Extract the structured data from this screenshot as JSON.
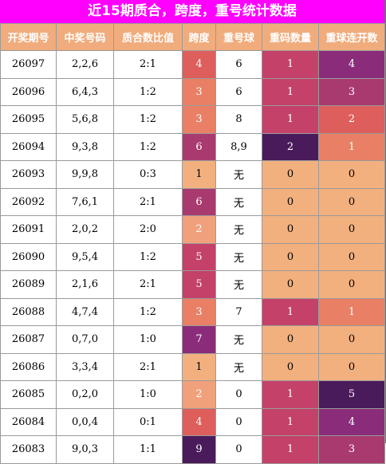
{
  "title": "近15期质合，跨度，重号统计数据",
  "columns": [
    "开奖期号",
    "中奖号码",
    "质合数比值",
    "跨度",
    "重号球",
    "重码数量",
    "重球连开数"
  ],
  "colors": {
    "header_bg": "#f0ac7c",
    "title_bg": "#ff00ff",
    "span_scale": {
      "1": "#f2b07f",
      "2": "#f0a07a",
      "3": "#e97f65",
      "4": "#dd5e5b",
      "5": "#c4416a",
      "6": "#a83a6f",
      "7": "#8a2c7a",
      "9": "#4a1b5a"
    },
    "count_scale": {
      "0": "#f2b07f",
      "1": "#c4416a",
      "2": "#4a1b5a"
    },
    "streak_scale": {
      "0": "#f2b07f",
      "1": "#e97f65",
      "2": "#dd5e5b",
      "3": "#a83a6f",
      "4": "#8a2c7a",
      "5": "#4a1b5a"
    }
  },
  "rows": [
    {
      "issue": "26097",
      "numbers": "2,2,6",
      "ratio": "2:1",
      "span": "4",
      "repeat": "6",
      "repeat_count": "1",
      "streak": "4"
    },
    {
      "issue": "26096",
      "numbers": "6,4,3",
      "ratio": "1:2",
      "span": "3",
      "repeat": "6",
      "repeat_count": "1",
      "streak": "3"
    },
    {
      "issue": "26095",
      "numbers": "5,6,8",
      "ratio": "1:2",
      "span": "3",
      "repeat": "8",
      "repeat_count": "1",
      "streak": "2"
    },
    {
      "issue": "26094",
      "numbers": "9,3,8",
      "ratio": "1:2",
      "span": "6",
      "repeat": "8,9",
      "repeat_count": "2",
      "streak": "1"
    },
    {
      "issue": "26093",
      "numbers": "9,9,8",
      "ratio": "0:3",
      "span": "1",
      "repeat": "无",
      "repeat_count": "0",
      "streak": "0"
    },
    {
      "issue": "26092",
      "numbers": "7,6,1",
      "ratio": "2:1",
      "span": "6",
      "repeat": "无",
      "repeat_count": "0",
      "streak": "0"
    },
    {
      "issue": "26091",
      "numbers": "2,0,2",
      "ratio": "2:0",
      "span": "2",
      "repeat": "无",
      "repeat_count": "0",
      "streak": "0"
    },
    {
      "issue": "26090",
      "numbers": "9,5,4",
      "ratio": "1:2",
      "span": "5",
      "repeat": "无",
      "repeat_count": "0",
      "streak": "0"
    },
    {
      "issue": "26089",
      "numbers": "2,1,6",
      "ratio": "2:1",
      "span": "5",
      "repeat": "无",
      "repeat_count": "0",
      "streak": "0"
    },
    {
      "issue": "26088",
      "numbers": "4,7,4",
      "ratio": "1:2",
      "span": "3",
      "repeat": "7",
      "repeat_count": "1",
      "streak": "1"
    },
    {
      "issue": "26087",
      "numbers": "0,7,0",
      "ratio": "1:0",
      "span": "7",
      "repeat": "无",
      "repeat_count": "0",
      "streak": "0"
    },
    {
      "issue": "26086",
      "numbers": "3,3,4",
      "ratio": "2:1",
      "span": "1",
      "repeat": "无",
      "repeat_count": "0",
      "streak": "0"
    },
    {
      "issue": "26085",
      "numbers": "0,2,0",
      "ratio": "1:0",
      "span": "2",
      "repeat": "0",
      "repeat_count": "1",
      "streak": "5"
    },
    {
      "issue": "26084",
      "numbers": "0,0,4",
      "ratio": "0:1",
      "span": "4",
      "repeat": "0",
      "repeat_count": "1",
      "streak": "4"
    },
    {
      "issue": "26083",
      "numbers": "9,0,3",
      "ratio": "1:1",
      "span": "9",
      "repeat": "0",
      "repeat_count": "1",
      "streak": "3"
    }
  ]
}
